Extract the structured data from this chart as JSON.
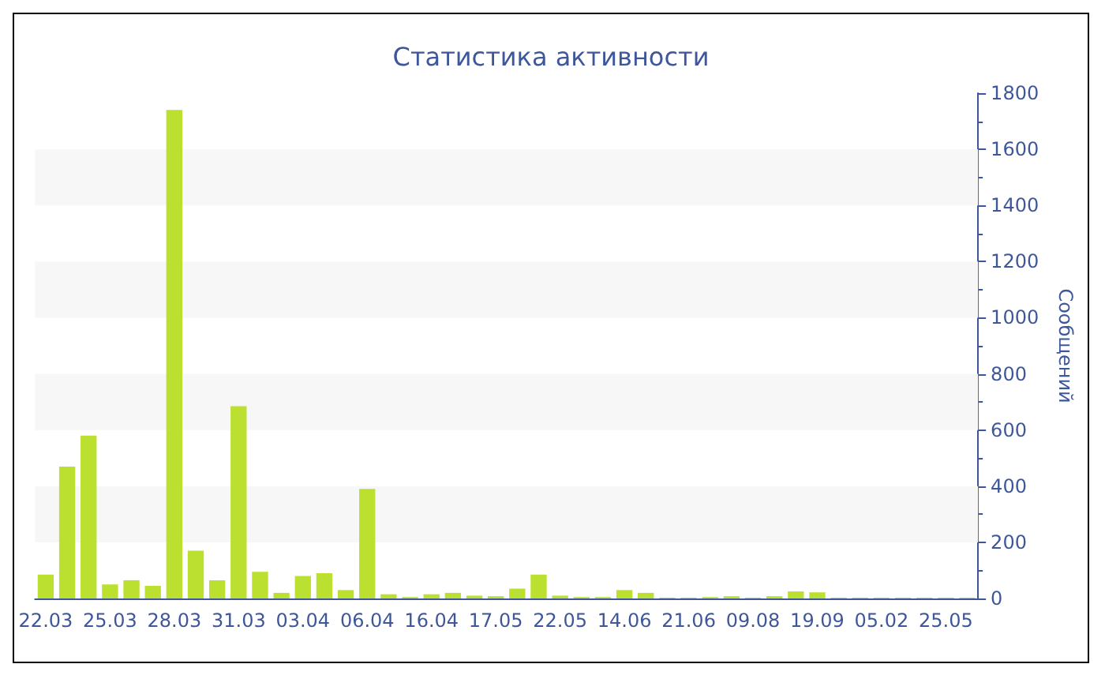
{
  "chart_data": {
    "type": "bar",
    "title": "Статистика активности",
    "ylabel": "Сообщений",
    "categories": [
      "22.03",
      null,
      null,
      "25.03",
      null,
      null,
      "28.03",
      null,
      null,
      "31.03",
      null,
      null,
      "03.04",
      null,
      null,
      "06.04",
      null,
      null,
      "16.04",
      null,
      null,
      "17.05",
      null,
      null,
      "22.05",
      null,
      null,
      "14.06",
      null,
      null,
      "21.06",
      null,
      null,
      "09.08",
      null,
      null,
      "19.09",
      null,
      null,
      "05.02",
      null,
      null,
      "25.05",
      null
    ],
    "values": [
      85,
      470,
      580,
      50,
      65,
      45,
      1740,
      170,
      65,
      685,
      95,
      20,
      80,
      90,
      30,
      390,
      15,
      5,
      15,
      20,
      10,
      8,
      35,
      85,
      10,
      5,
      5,
      30,
      20,
      3,
      3,
      5,
      8,
      3,
      8,
      25,
      22,
      3,
      3,
      3,
      3,
      3,
      3,
      3
    ],
    "color": "#bbe02f",
    "ylim": [
      0,
      1800
    ],
    "yticks": [
      0,
      200,
      400,
      600,
      800,
      1000,
      1200,
      1400,
      1600,
      1800
    ],
    "bands": [
      {
        "axis": "y",
        "from": 200,
        "to": 400,
        "color": "#f7f7f7"
      },
      {
        "axis": "y",
        "from": 600,
        "to": 800,
        "color": "#f7f7f7"
      },
      {
        "axis": "y",
        "from": 1000,
        "to": 1200,
        "color": "#f7f7f7"
      },
      {
        "axis": "y",
        "from": 1400,
        "to": 1600,
        "color": "#f7f7f7"
      }
    ]
  }
}
